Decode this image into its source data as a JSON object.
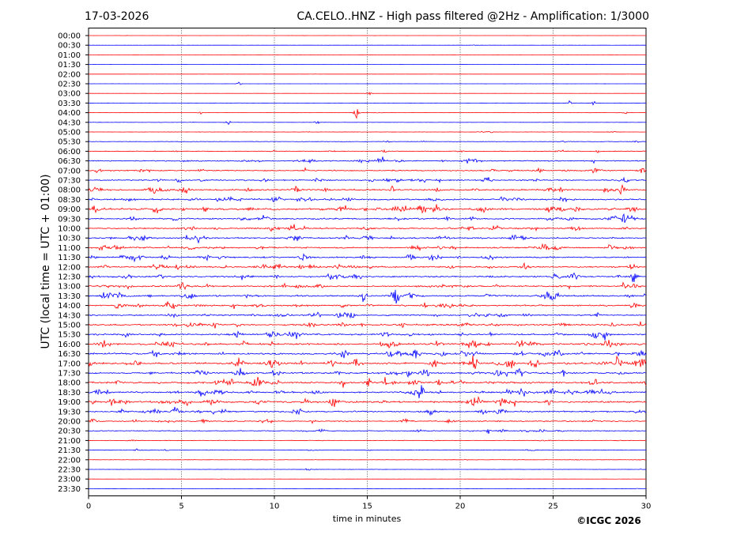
{
  "header": {
    "date": "17-03-2026",
    "title": "CA.CELO..HNZ - High pass filtered @2Hz - Amplification: 1/3000"
  },
  "footer": {
    "copyright": "©ICGC 2026"
  },
  "colors": {
    "odd_rows": "#ff0000",
    "even_rows": "#0000ff",
    "grid": "#000000"
  },
  "chart_data": {
    "type": "line",
    "subtype": "helicorder",
    "xlabel": "time in minutes",
    "ylabel": "UTC (local time = UTC + 01:00)",
    "xlim": [
      0,
      30
    ],
    "x_ticks": [
      0,
      5,
      10,
      15,
      20,
      25,
      30
    ],
    "vertical_grid": [
      5,
      10,
      15,
      20,
      25
    ],
    "row_labels": [
      "00:00",
      "00:30",
      "01:00",
      "01:30",
      "02:00",
      "02:30",
      "03:00",
      "03:30",
      "04:00",
      "04:30",
      "05:00",
      "05:30",
      "06:00",
      "06:30",
      "07:00",
      "07:30",
      "08:00",
      "08:30",
      "09:00",
      "09:30",
      "10:00",
      "10:30",
      "11:00",
      "11:30",
      "12:00",
      "12:30",
      "13:00",
      "13:30",
      "14:00",
      "14:30",
      "15:00",
      "15:30",
      "16:00",
      "16:30",
      "17:00",
      "17:30",
      "18:00",
      "18:30",
      "19:00",
      "19:30",
      "20:00",
      "20:30",
      "21:00",
      "21:30",
      "22:00",
      "22:30",
      "23:00",
      "23:30"
    ],
    "row_colors": [
      "red",
      "blue"
    ],
    "noise_level": [
      0.03,
      0.03,
      0.02,
      0.02,
      0.02,
      0.03,
      0.03,
      0.04,
      0.05,
      0.06,
      0.08,
      0.12,
      0.18,
      0.3,
      0.32,
      0.35,
      0.4,
      0.45,
      0.55,
      0.4,
      0.38,
      0.4,
      0.42,
      0.4,
      0.42,
      0.4,
      0.42,
      0.45,
      0.42,
      0.4,
      0.42,
      0.45,
      0.5,
      0.48,
      0.55,
      0.5,
      0.52,
      0.5,
      0.5,
      0.42,
      0.3,
      0.22,
      0.15,
      0.13,
      0.1,
      0.07,
      0.05,
      0.04
    ],
    "events": [
      {
        "row": 1,
        "minute": 20.8,
        "amp": 0.25
      },
      {
        "row": 5,
        "minute": 8.1,
        "amp": 0.5
      },
      {
        "row": 6,
        "minute": 15.1,
        "amp": 0.3
      },
      {
        "row": 7,
        "minute": 25.9,
        "amp": 0.45
      },
      {
        "row": 7,
        "minute": 27.2,
        "amp": 0.6
      },
      {
        "row": 8,
        "minute": 14.4,
        "amp": 1.6
      },
      {
        "row": 8,
        "minute": 6.0,
        "amp": 0.4
      },
      {
        "row": 8,
        "minute": 28.9,
        "amp": 0.4
      },
      {
        "row": 9,
        "minute": 7.5,
        "amp": 0.5
      },
      {
        "row": 9,
        "minute": 12.3,
        "amp": 0.45
      },
      {
        "row": 10,
        "minute": 21.6,
        "amp": 0.45
      },
      {
        "row": 12,
        "minute": 15.9,
        "amp": 0.5
      },
      {
        "row": 13,
        "minute": 27.2,
        "amp": 0.6
      },
      {
        "row": 15,
        "minute": 15.2,
        "amp": 0.6
      },
      {
        "row": 16,
        "minute": 16.3,
        "amp": 0.8
      },
      {
        "row": 24,
        "minute": 4.8,
        "amp": 0.7
      },
      {
        "row": 25,
        "minute": 29.3,
        "amp": 1.1
      },
      {
        "row": 25,
        "minute": 28.5,
        "amp": 0.8
      },
      {
        "row": 27,
        "minute": 14.8,
        "amp": 0.9
      },
      {
        "row": 27,
        "minute": 16.6,
        "amp": 1.3
      },
      {
        "row": 30,
        "minute": 16.9,
        "amp": 0.7
      },
      {
        "row": 32,
        "minute": 4.3,
        "amp": 0.7
      },
      {
        "row": 33,
        "minute": 4.9,
        "amp": 1.0
      },
      {
        "row": 33,
        "minute": 23.0,
        "amp": 0.6
      },
      {
        "row": 34,
        "minute": 18.5,
        "amp": 0.8
      },
      {
        "row": 37,
        "minute": 21.0,
        "amp": 0.6
      },
      {
        "row": 39,
        "minute": 4.6,
        "amp": 0.8
      },
      {
        "row": 41,
        "minute": 21.5,
        "amp": 0.5
      },
      {
        "row": 43,
        "minute": 2.6,
        "amp": 0.6
      },
      {
        "row": 45,
        "minute": 11.8,
        "amp": 0.5
      }
    ]
  }
}
